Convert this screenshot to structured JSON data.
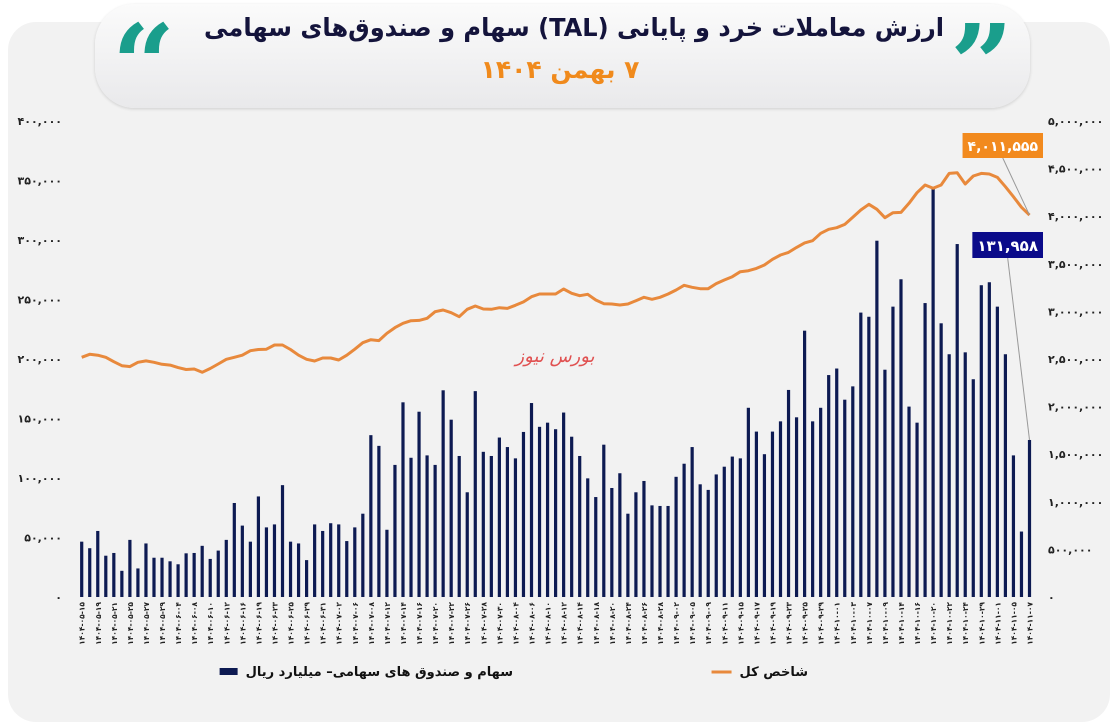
{
  "header": {
    "title": "ارزش معاملات خرد و پایانی (TAL) سهام و صندوق‌های سهامی",
    "subtitle": "۷ بهمن ۱۴۰۴",
    "watermark": "بورس نیوز"
  },
  "colors": {
    "bars": "#0d1a52",
    "line": "#e8893c",
    "quote": "#1a9e8c",
    "subtitle": "#f08a1c",
    "line_label_bg": "#f28a1e",
    "bar_label_bg": "#0b0b8a"
  },
  "chart_data": {
    "type": "bar+line",
    "grid": false,
    "legend_placement": "bottom",
    "left_axis": {
      "ylim": [
        0,
        400000
      ],
      "tick_labels": [
        "۰",
        "۵۰,۰۰۰",
        "۱۰۰,۰۰۰",
        "۱۵۰,۰۰۰",
        "۲۰۰,۰۰۰",
        "۲۵۰,۰۰۰",
        "۳۰۰,۰۰۰",
        "۳۵۰,۰۰۰",
        "۴۰۰,۰۰۰"
      ]
    },
    "right_axis": {
      "ylim": [
        0,
        5000000
      ],
      "tick_labels": [
        "۰",
        "۵۰۰,۰۰۰",
        "۱,۰۰۰,۰۰۰",
        "۱,۵۰۰,۰۰۰",
        "۲,۰۰۰,۰۰۰",
        "۲,۵۰۰,۰۰۰",
        "۳,۰۰۰,۰۰۰",
        "۳,۵۰۰,۰۰۰",
        "۴,۰۰۰,۰۰۰",
        "۴,۵۰۰,۰۰۰",
        "۵,۰۰۰,۰۰۰"
      ]
    },
    "x_tick_labels": [
      "۱۴۰۴-۰۵-۱۵",
      "۱۴۰۴-۰۵-۱۹",
      "۱۴۰۴-۰۵-۲۱",
      "۱۴۰۴-۰۵-۲۵",
      "۱۴۰۴-۰۵-۲۷",
      "۱۴۰۴-۰۵-۲۹",
      "۱۴۰۴-۰۶-۰۴",
      "۱۴۰۴-۰۶-۰۸",
      "۱۴۰۴-۰۶-۱۰",
      "۱۴۰۴-۰۶-۱۲",
      "۱۴۰۴-۰۶-۱۶",
      "۱۴۰۴-۰۶-۱۹",
      "۱۴۰۴-۰۶-۲۳",
      "۱۴۰۴-۰۶-۲۵",
      "۱۴۰۴-۰۶-۲۹",
      "۱۴۰۴-۰۶-۳۱",
      "۱۴۰۴-۰۷-۰۲",
      "۱۴۰۴-۰۷-۰۶",
      "۱۴۰۴-۰۷-۰۸",
      "۱۴۰۴-۰۷-۱۲",
      "۱۴۰۴-۰۷-۱۴",
      "۱۴۰۴-۰۷-۱۶",
      "۱۴۰۴-۰۷-۲۰",
      "۱۴۰۴-۰۷-۲۲",
      "۱۴۰۴-۰۷-۲۶",
      "۱۴۰۴-۰۷-۲۸",
      "۱۴۰۴-۰۷-۳۰",
      "۱۴۰۴-۰۸-۰۴",
      "۱۴۰۴-۰۸-۰۶",
      "۱۴۰۴-۰۸-۱۰",
      "۱۴۰۴-۰۸-۱۲",
      "۱۴۰۴-۰۸-۱۴",
      "۱۴۰۴-۰۸-۱۸",
      "۱۴۰۴-۰۸-۲۰",
      "۱۴۰۴-۰۸-۲۴",
      "۱۴۰۴-۰۸-۲۶",
      "۱۴۰۴-۰۸-۲۸",
      "۱۴۰۴-۰۹-۰۲",
      "۱۴۰۴-۰۹-۰۵",
      "۱۴۰۴-۰۹-۰۹",
      "۱۴۰۴-۰۹-۱۱",
      "۱۴۰۴-۰۹-۱۵",
      "۱۴۰۴-۰۹-۱۷",
      "۱۴۰۴-۰۹-۱۹",
      "۱۴۰۴-۰۹-۲۳",
      "۱۴۰۴-۰۹-۲۵",
      "۱۴۰۴-۰۹-۲۹",
      "۱۴۰۴-۱۰-۰۱",
      "۱۴۰۴-۱۰-۰۳",
      "۱۴۰۴-۱۰-۰۷",
      "۱۴۰۴-۱۰-۰۹",
      "۱۴۰۴-۱۰-۱۴",
      "۱۴۰۴-۱۰-۱۶",
      "۱۴۰۴-۱۰-۲۰",
      "۱۴۰۴-۱۰-۲۲",
      "۱۴۰۴-۱۰-۲۴",
      "۱۴۰۴-۱۰-۲۹",
      "۱۴۰۴-۱۱-۰۱",
      "۱۴۰۴-۱۱-۰۵",
      "۱۴۰۴-۱۱-۰۷"
    ],
    "series": [
      {
        "name": "سهام و صندوق های سهامی– میلیارد ریال",
        "type": "bar",
        "axis": "left",
        "values": [
          46500,
          41000,
          55500,
          34700,
          37000,
          22000,
          48000,
          24000,
          45000,
          33000,
          33000,
          30000,
          27500,
          36700,
          37000,
          43000,
          32000,
          39000,
          48000,
          79000,
          60000,
          46500,
          84500,
          58500,
          61000,
          94000,
          46500,
          45000,
          31000,
          61000,
          55500,
          62000,
          61000,
          47000,
          58500,
          70000,
          136000,
          127000,
          56500,
          111000,
          163600,
          117000,
          155700,
          119000,
          111000,
          173700,
          149000,
          118500,
          88000,
          173000,
          122000,
          118500,
          134000,
          126000,
          116500,
          138700,
          163000,
          143000,
          146500,
          141000,
          155000,
          134700,
          118500,
          99700,
          84000,
          128000,
          91600,
          104000,
          70000,
          88000,
          97500,
          77000,
          76500,
          76500,
          101000,
          112000,
          126000,
          94700,
          90000,
          103000,
          109500,
          118000,
          116500,
          159000,
          139000,
          120000,
          139000,
          147600,
          174000,
          151000,
          223800,
          147600,
          159000,
          186500,
          192000,
          165800,
          177000,
          239000,
          235500,
          299400,
          191000,
          244000,
          267000,
          160000,
          146500,
          247000,
          344000,
          230000,
          204000,
          296600,
          205600,
          183000,
          262000,
          264500,
          244000,
          204000,
          119000,
          55000,
          131958
        ]
      },
      {
        "name": "شاخص کل",
        "type": "line",
        "axis": "right",
        "values": [
          2518000,
          2549000,
          2540000,
          2518000,
          2472000,
          2430000,
          2420000,
          2465000,
          2480000,
          2465000,
          2444000,
          2436000,
          2410000,
          2390000,
          2395000,
          2360000,
          2400000,
          2447000,
          2497000,
          2518000,
          2540000,
          2587000,
          2600000,
          2603000,
          2647000,
          2647000,
          2600000,
          2540000,
          2497000,
          2479000,
          2510000,
          2510000,
          2490000,
          2540000,
          2603000,
          2671000,
          2703000,
          2693000,
          2770000,
          2830000,
          2875000,
          2902000,
          2905000,
          2927000,
          2997000,
          3015000,
          2986000,
          2944000,
          3022000,
          3057000,
          3025000,
          3022000,
          3039000,
          3032000,
          3064000,
          3100000,
          3154000,
          3183000,
          3183000,
          3183000,
          3235000,
          3190000,
          3165000,
          3180000,
          3120000,
          3081000,
          3078000,
          3067000,
          3078000,
          3112000,
          3148000,
          3127000,
          3148000,
          3183000,
          3225000,
          3274000,
          3253000,
          3238000,
          3238000,
          3292000,
          3330000,
          3364000,
          3417000,
          3427000,
          3452000,
          3487000,
          3547000,
          3592000,
          3620000,
          3672000,
          3720000,
          3743000,
          3820000,
          3862000,
          3879000,
          3914000,
          3988000,
          4065000,
          4125000,
          4072000,
          3984000,
          4037000,
          4040000,
          4135000,
          4247000,
          4328000,
          4293000,
          4328000,
          4450000,
          4457000,
          4338000,
          4422000,
          4450000,
          4443000,
          4408000,
          4310000,
          4205000,
          4093000,
          4011555
        ]
      }
    ],
    "annotations": {
      "line_last": "۴,۰۱۱,۵۵۵",
      "bar_last": "۱۳۱,۹۵۸"
    }
  }
}
